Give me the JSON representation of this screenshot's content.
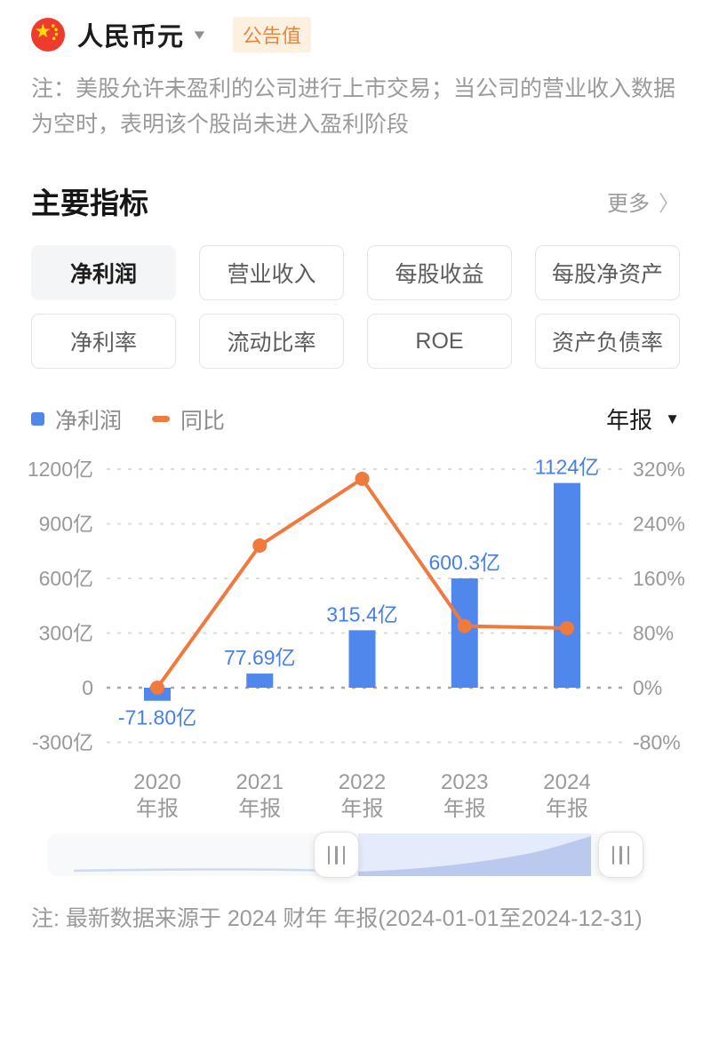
{
  "header": {
    "title": "人民币元",
    "badge": "公告值",
    "flag_icon": "china-flag-icon",
    "flag_red": "#ee3b2e",
    "flag_yellow": "#ffde00"
  },
  "notes": {
    "top": "注：美股允许未盈利的公司进行上市交易；当公司的营业收入数据为空时，表明该个股尚未进入盈利阶段",
    "bottom": "注: 最新数据来源于 2024 财年 年报(2024-01-01至2024-12-31)"
  },
  "section": {
    "title": "主要指标",
    "more_label": "更多",
    "more_chevron": "〉"
  },
  "metric_buttons": [
    {
      "key": "net-profit",
      "label": "净利润",
      "active": true
    },
    {
      "key": "revenue",
      "label": "营业收入",
      "active": false
    },
    {
      "key": "eps",
      "label": "每股收益",
      "active": false
    },
    {
      "key": "bvps",
      "label": "每股净资产",
      "active": false
    },
    {
      "key": "net-margin",
      "label": "净利率",
      "active": false
    },
    {
      "key": "current-ratio",
      "label": "流动比率",
      "active": false
    },
    {
      "key": "roe",
      "label": "ROE",
      "active": false
    },
    {
      "key": "debt-ratio",
      "label": "资产负债率",
      "active": false
    }
  ],
  "legend": {
    "bar_label": "净利润",
    "line_label": "同比"
  },
  "period_selector": {
    "value": "年报"
  },
  "chart_data": {
    "type": "bar+line",
    "categories": [
      "2020 年报",
      "2021 年报",
      "2022 年报",
      "2023 年报",
      "2024 年报"
    ],
    "series": [
      {
        "name": "净利润",
        "type": "bar",
        "axis": "left",
        "unit": "亿",
        "values": [
          -71.8,
          77.69,
          315.4,
          600.3,
          1124
        ],
        "labels": [
          "-71.80亿",
          "77.69亿",
          "315.4亿",
          "600.3亿",
          "1124亿"
        ],
        "color": "#5087ec",
        "label_color": "#4580ea"
      },
      {
        "name": "同比",
        "type": "line",
        "axis": "right",
        "unit": "%",
        "values": [
          0,
          208.2,
          305.9,
          90.3,
          87.2
        ],
        "color": "#f0793e"
      }
    ],
    "left_axis": {
      "min": -300,
      "max": 1200,
      "ticks": [
        1200,
        900,
        600,
        300,
        0,
        -300
      ],
      "tick_labels": [
        "1200亿",
        "900亿",
        "600亿",
        "300亿",
        "0",
        "-300亿"
      ]
    },
    "right_axis": {
      "min": -80,
      "max": 320,
      "ticks": [
        320,
        240,
        160,
        80,
        0,
        -80
      ],
      "tick_labels": [
        "320%",
        "240%",
        "160%",
        "80%",
        "0%",
        "-80%"
      ]
    },
    "grid": "dashed horizontal",
    "legend_position": "top-left",
    "axis_text_color": "#999999"
  }
}
